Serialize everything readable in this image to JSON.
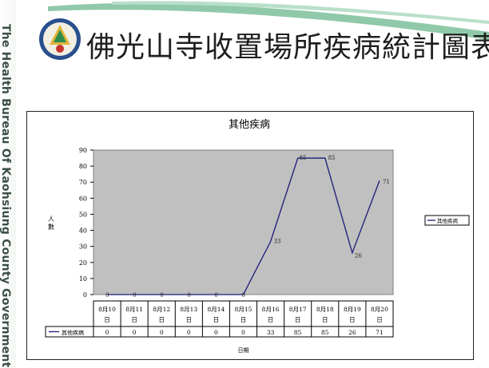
{
  "header": {
    "side_text": "The Health Bureau Of Kaohsiung County Government",
    "title": "佛光山寺收置場所疾病統計圖表"
  },
  "colors": {
    "line": "#1a1a7a",
    "plot_bg": "#c0c0c0",
    "swoosh": "#7cbf9a"
  },
  "chart_data": {
    "type": "line",
    "title": "其他疾病",
    "xlabel": "日期",
    "ylabel": "人數",
    "ylim": [
      0,
      90
    ],
    "yticks": [
      0,
      10,
      20,
      30,
      40,
      50,
      60,
      70,
      80,
      90
    ],
    "grid": false,
    "legend_position": "right",
    "categories": [
      "8月10日",
      "8月11日",
      "8月12日",
      "8月13日",
      "8月14日",
      "8月15日",
      "8月16日",
      "8月17日",
      "8月18日",
      "8月19日",
      "8月20日"
    ],
    "series": [
      {
        "name": "其他疾病",
        "values": [
          0,
          0,
          0,
          0,
          0,
          0,
          33,
          85,
          85,
          26,
          71
        ]
      }
    ]
  }
}
